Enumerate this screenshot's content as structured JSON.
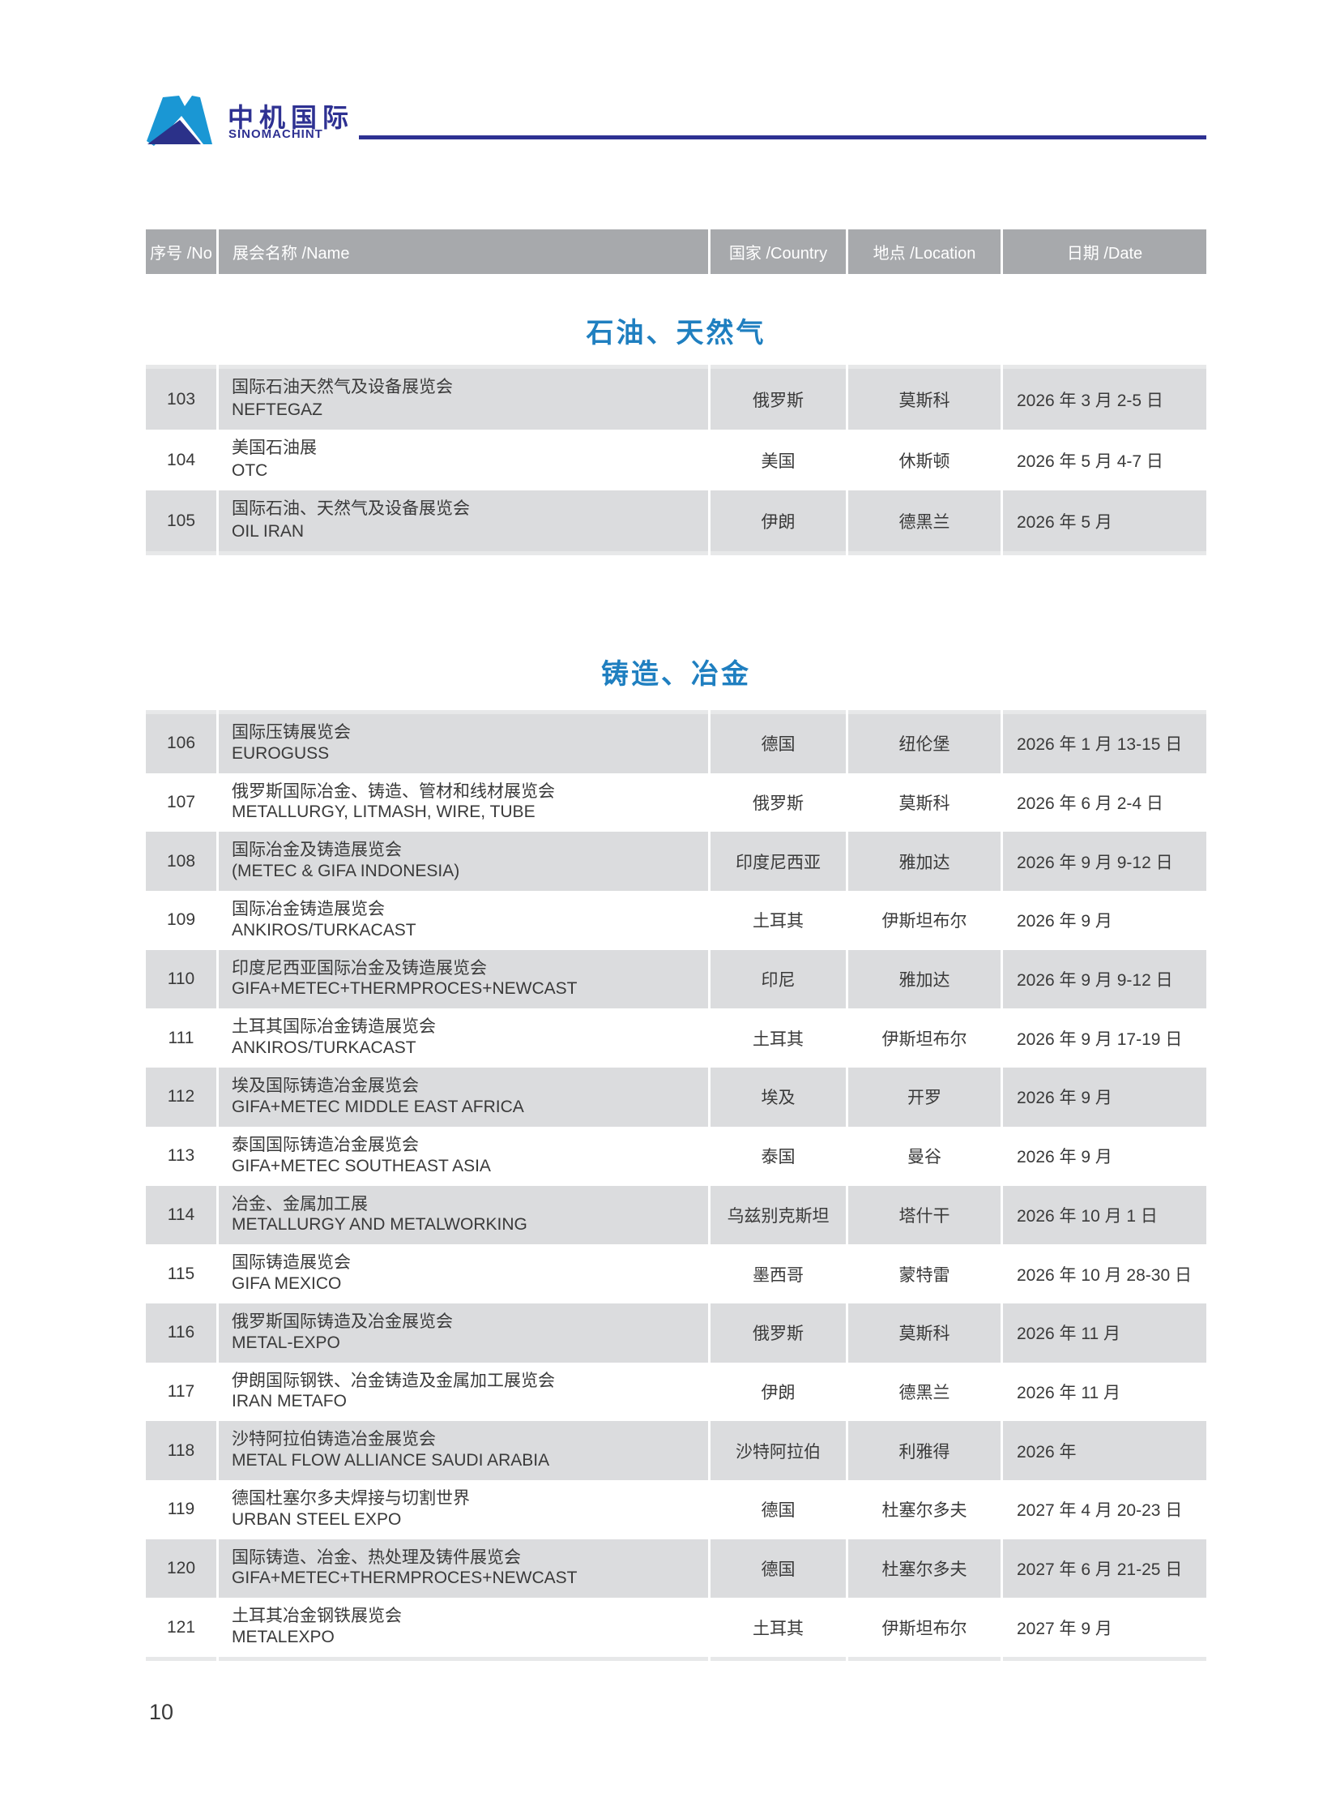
{
  "logo": {
    "name_cn": "中机国际",
    "name_en": "SINOMACHINT"
  },
  "table_header": {
    "no": "序号 /No",
    "name": "展会名称 /Name",
    "country": "国家 /Country",
    "location": "地点 /Location",
    "date": "日期 /Date"
  },
  "sections": [
    {
      "title": "石油、天然气",
      "rows": [
        {
          "no": "103",
          "name_cn": "国际石油天然气及设备展览会",
          "name_en": "NEFTEGAZ",
          "country": "俄罗斯",
          "location": "莫斯科",
          "date": "2026 年 3 月 2-5 日"
        },
        {
          "no": "104",
          "name_cn": "美国石油展",
          "name_en": "OTC",
          "country": "美国",
          "location": "休斯顿",
          "date": "2026 年 5 月 4-7 日"
        },
        {
          "no": "105",
          "name_cn": "国际石油、天然气及设备展览会",
          "name_en": "OIL IRAN",
          "country": "伊朗",
          "location": "德黑兰",
          "date": "2026 年 5 月"
        }
      ]
    },
    {
      "title": "铸造、冶金",
      "rows": [
        {
          "no": "106",
          "name_cn": "国际压铸展览会",
          "name_en": "EUROGUSS",
          "country": "德国",
          "location": "纽伦堡",
          "date": "2026 年 1 月 13-15 日"
        },
        {
          "no": "107",
          "name_cn": "俄罗斯国际冶金、铸造、管材和线材展览会",
          "name_en": "METALLURGY, LITMASH, WIRE, TUBE",
          "country": "俄罗斯",
          "location": "莫斯科",
          "date": "2026 年 6 月 2-4 日"
        },
        {
          "no": "108",
          "name_cn": "国际冶金及铸造展览会",
          "name_en": "(METEC & GIFA INDONESIA)",
          "country": "印度尼西亚",
          "location": "雅加达",
          "date": "2026 年 9 月 9-12 日"
        },
        {
          "no": "109",
          "name_cn": "国际冶金铸造展览会",
          "name_en": "ANKIROS/TURKACAST",
          "country": "土耳其",
          "location": "伊斯坦布尔",
          "date": "2026 年 9 月"
        },
        {
          "no": "110",
          "name_cn": "印度尼西亚国际冶金及铸造展览会",
          "name_en": "GIFA+METEC+THERMPROCES+NEWCAST",
          "country": "印尼",
          "location": "雅加达",
          "date": "2026 年 9 月 9-12 日"
        },
        {
          "no": "111",
          "name_cn": "土耳其国际冶金铸造展览会",
          "name_en": "ANKIROS/TURKACAST",
          "country": "土耳其",
          "location": "伊斯坦布尔",
          "date": "2026 年 9 月 17-19 日"
        },
        {
          "no": "112",
          "name_cn": "埃及国际铸造冶金展览会",
          "name_en": "GIFA+METEC MIDDLE EAST AFRICA",
          "country": "埃及",
          "location": "开罗",
          "date": "2026 年 9 月"
        },
        {
          "no": "113",
          "name_cn": "泰国国际铸造冶金展览会",
          "name_en": "GIFA+METEC SOUTHEAST ASIA",
          "country": "泰国",
          "location": "曼谷",
          "date": "2026 年 9 月"
        },
        {
          "no": "114",
          "name_cn": "冶金、金属加工展",
          "name_en": "METALLURGY AND METALWORKING",
          "country": "乌兹别克斯坦",
          "location": "塔什干",
          "date": "2026 年 10 月 1 日"
        },
        {
          "no": "115",
          "name_cn": "国际铸造展览会",
          "name_en": "GIFA MEXICO",
          "country": "墨西哥",
          "location": "蒙特雷",
          "date": "2026 年 10 月 28-30 日"
        },
        {
          "no": "116",
          "name_cn": "俄罗斯国际铸造及冶金展览会",
          "name_en": "METAL-EXPO",
          "country": "俄罗斯",
          "location": "莫斯科",
          "date": "2026 年 11 月"
        },
        {
          "no": "117",
          "name_cn": "伊朗国际钢铁、冶金铸造及金属加工展览会",
          "name_en": "IRAN METAFO",
          "country": "伊朗",
          "location": "德黑兰",
          "date": "2026 年 11 月"
        },
        {
          "no": "118",
          "name_cn": "沙特阿拉伯铸造冶金展览会",
          "name_en": "METAL FLOW ALLIANCE SAUDI ARABIA",
          "country": "沙特阿拉伯",
          "location": "利雅得",
          "date": "2026 年"
        },
        {
          "no": "119",
          "name_cn": "德国杜塞尔多夫焊接与切割世界",
          "name_en": "URBAN STEEL EXPO",
          "country": "德国",
          "location": "杜塞尔多夫",
          "date": "2027 年 4 月 20-23 日"
        },
        {
          "no": "120",
          "name_cn": "国际铸造、冶金、热处理及铸件展览会",
          "name_en": "GIFA+METEC+THERMPROCES+NEWCAST",
          "country": "德国",
          "location": "杜塞尔多夫",
          "date": "2027 年 6 月 21-25 日"
        },
        {
          "no": "121",
          "name_cn": "土耳其冶金钢铁展览会",
          "name_en": "METALEXPO",
          "country": "土耳其",
          "location": "伊斯坦布尔",
          "date": "2027 年 9 月"
        }
      ]
    }
  ],
  "page_number": "10",
  "colors": {
    "brand_navy": "#2e3192",
    "brand_cyan": "#1a97d4",
    "section_title_blue": "#1f7fc0",
    "table_header_gray": "#a7a9ac",
    "row_shade_gray": "#dbdcde",
    "table_border_gray": "#e7e8e9",
    "body_text": "#3a3a3a"
  }
}
